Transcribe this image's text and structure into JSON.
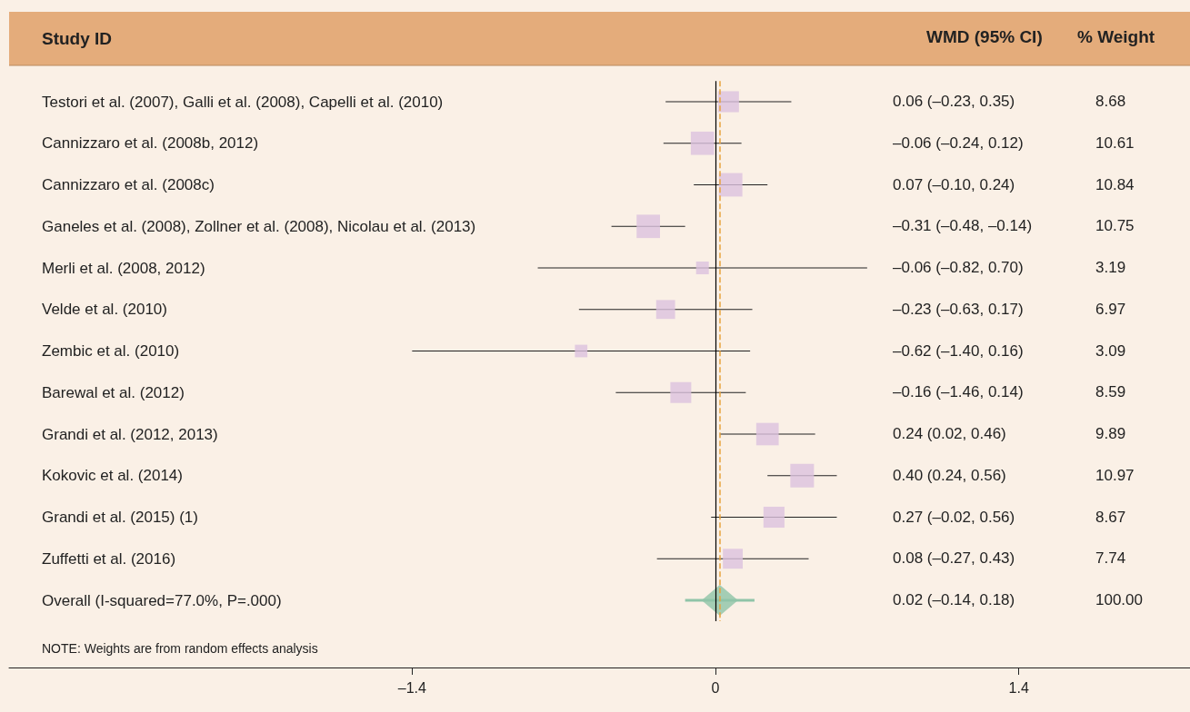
{
  "chart_data": [
    {
      "type": "bubble",
      "ylabel": "Study ID",
      "categories": [
        "Testori et al. (2007), Galli et al. (2008), Capelli et al. (2010)",
        "Cannizzaro et al. (2008b, 2012)",
        "Cannizzaro et al. (2008c)",
        "Ganeles et al. (2008), Zollner et al. (2008), Nicolau et al. (2013)",
        "Merli et al. (2008, 2012)",
        "Velde et al. (2010)",
        "Zembic et al. (2010)",
        "Barewal et al. (2012)",
        "Grandi et al. (2012, 2013)",
        "Kokovic et al. (2014)",
        "Grandi et al. (2015) (1)",
        "Zuffetti et al. (2016)",
        "Overall (I-squared=77.0%, P=.000)"
      ],
      "series": [
        {
          "marker": "square",
          "color": "#dcc2df",
          "values": [
            0.06,
            -0.06,
            0.07,
            -0.31,
            -0.06,
            -0.23,
            -0.62,
            -0.16,
            0.24,
            0.4,
            0.27,
            0.08,
            null
          ],
          "errors": [
            [
              -0.23,
              0.35
            ],
            [
              -0.24,
              0.12
            ],
            [
              -0.1,
              0.24
            ],
            [
              -0.48,
              -0.14
            ],
            [
              -0.82,
              0.7
            ],
            [
              -0.63,
              0.17
            ],
            [
              -1.4,
              0.16
            ],
            [
              -0.46,
              0.14
            ],
            [
              0.02,
              0.46
            ],
            [
              0.24,
              0.56
            ],
            [
              -0.02,
              0.56
            ],
            [
              -0.27,
              0.43
            ],
            null
          ],
          "sizes": [
            0.79,
            0.97,
            0.99,
            0.98,
            0.29,
            0.64,
            0.28,
            0.78,
            0.9,
            1,
            0.79,
            0.71,
            null
          ]
        },
        {
          "type": "scatter",
          "marker": "diamond",
          "color": "#8fc4a8",
          "values": [
            null,
            null,
            null,
            null,
            null,
            null,
            null,
            null,
            null,
            null,
            null,
            null,
            0.02
          ],
          "errors": [
            null,
            null,
            null,
            null,
            null,
            null,
            null,
            null,
            null,
            null,
            null,
            null,
            [
              -0.14,
              0.18
            ]
          ]
        }
      ],
      "orientation": "horizontal",
      "xlim": [
        -3.26,
        2.19
      ],
      "xticks": [
        {
          "value": -1.4,
          "label": "–1.4"
        },
        0,
        1.4
      ],
      "ref_lines": [
        {
          "axis": "x",
          "value": 0,
          "color": "#000000",
          "line_style": "solid"
        },
        {
          "axis": "x",
          "value": 0.02,
          "color": "#e8a33c",
          "line_style": "dashed"
        }
      ],
      "annotations": [
        "NOTE: Weights are from random effects analysis"
      ]
    },
    {
      "type": "other",
      "annotations": [
        "WMD (95% CI)",
        "% Weight",
        "0.06 (–0.23, 0.35)",
        "8.68",
        "–0.06 (–0.24, 0.12)",
        "10.61",
        "0.07 (–0.10, 0.24)",
        "10.84",
        "–0.31 (–0.48, –0.14)",
        "10.75",
        "–0.06 (–0.82, 0.70)",
        "3.19",
        "–0.23 (–0.63, 0.17)",
        "6.97",
        "–0.62 (–1.40, 0.16)",
        "3.09",
        "–0.16 (–1.46, 0.14)",
        "8.59",
        "0.24 (0.02, 0.46)",
        "9.89",
        "0.40 (0.24, 0.56)",
        "10.97",
        "0.27 (–0.02, 0.56)",
        "8.67",
        "0.08 (–0.27, 0.43)",
        "7.74",
        "0.02 (–0.14, 0.18)",
        "100.00"
      ]
    }
  ]
}
